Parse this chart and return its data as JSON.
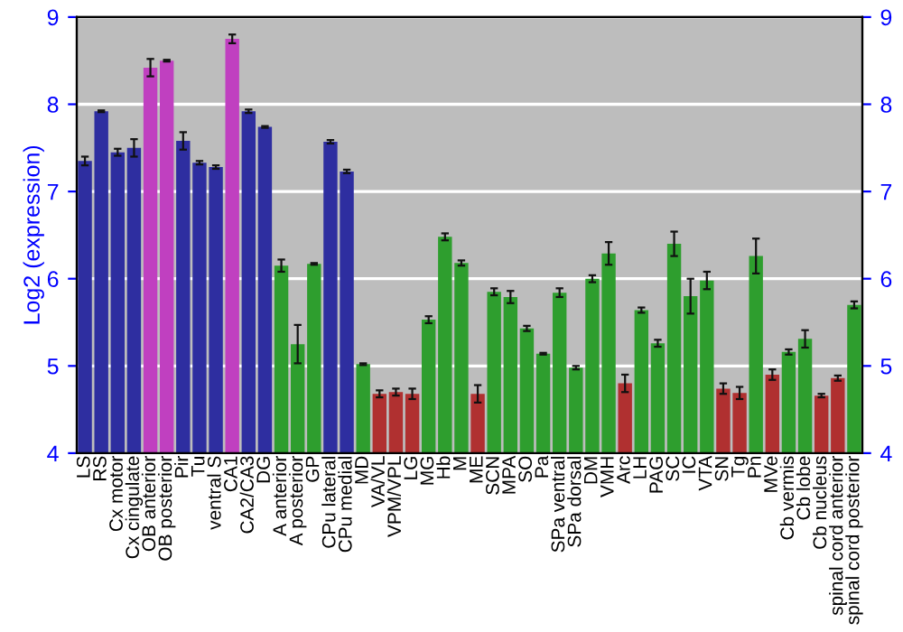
{
  "chart_data": {
    "type": "bar",
    "ylabel": "Log2 (expression)",
    "categories": [
      "LS",
      "RS",
      "Cx motor",
      "Cx cingulate",
      "OB anterior",
      "OB posterior",
      "Pir",
      "Tu",
      "ventral S",
      "CA1",
      "CA2/CA3",
      "DG",
      "A anterior",
      "A posterior",
      "GP",
      "CPu lateral",
      "CPu medial",
      "MD",
      "VA/VL",
      "VPM/VPL",
      "LG",
      "MG",
      "Hb",
      "M",
      "ME",
      "SCN",
      "MPA",
      "SO",
      "Pa",
      "SPa ventral",
      "SPa dorsal",
      "DM",
      "VMH",
      "Arc",
      "LH",
      "PAG",
      "SC",
      "IC",
      "VTA",
      "SN",
      "Tg",
      "Pn",
      "MVe",
      "Cb vermis",
      "Cb lobe",
      "Cb nucleus",
      "spinal cord anterior",
      "spinal cord posterior"
    ],
    "values": [
      7.35,
      7.92,
      7.45,
      7.5,
      8.42,
      8.5,
      7.58,
      7.33,
      7.28,
      8.75,
      7.92,
      7.74,
      6.15,
      5.25,
      6.17,
      7.57,
      7.23,
      5.02,
      4.68,
      4.7,
      4.68,
      5.53,
      6.48,
      6.18,
      4.68,
      5.85,
      5.79,
      5.43,
      5.14,
      5.84,
      4.98,
      6.0,
      6.29,
      4.8,
      5.64,
      5.26,
      6.4,
      5.8,
      5.98,
      4.74,
      4.69,
      6.26,
      4.9,
      5.16,
      5.31,
      4.66,
      4.86,
      5.7
    ],
    "errors": [
      0.05,
      0.01,
      0.04,
      0.1,
      0.1,
      0.01,
      0.1,
      0.02,
      0.02,
      0.05,
      0.02,
      0.01,
      0.07,
      0.22,
      0.01,
      0.02,
      0.02,
      0.01,
      0.04,
      0.04,
      0.06,
      0.04,
      0.04,
      0.03,
      0.1,
      0.04,
      0.07,
      0.03,
      0.01,
      0.05,
      0.02,
      0.04,
      0.13,
      0.1,
      0.03,
      0.04,
      0.14,
      0.2,
      0.1,
      0.06,
      0.07,
      0.2,
      0.06,
      0.03,
      0.1,
      0.02,
      0.03,
      0.04
    ],
    "colors": [
      "#2e2ea0",
      "#2e2ea0",
      "#2e2ea0",
      "#2e2ea0",
      "#c040c0",
      "#c040c0",
      "#2e2ea0",
      "#2e2ea0",
      "#2e2ea0",
      "#c040c0",
      "#2e2ea0",
      "#2e2ea0",
      "#2e9e2e",
      "#2e9e2e",
      "#2e9e2e",
      "#2e2ea0",
      "#2e2ea0",
      "#2e9e2e",
      "#b03030",
      "#b03030",
      "#b03030",
      "#2e9e2e",
      "#2e9e2e",
      "#2e9e2e",
      "#b03030",
      "#2e9e2e",
      "#2e9e2e",
      "#2e9e2e",
      "#2e9e2e",
      "#2e9e2e",
      "#2e9e2e",
      "#2e9e2e",
      "#2e9e2e",
      "#b03030",
      "#2e9e2e",
      "#2e9e2e",
      "#2e9e2e",
      "#2e9e2e",
      "#2e9e2e",
      "#b03030",
      "#b03030",
      "#2e9e2e",
      "#b03030",
      "#2e9e2e",
      "#2e9e2e",
      "#b03030",
      "#b03030",
      "#2e9e2e"
    ],
    "ylim": [
      4,
      9
    ],
    "yticks": [
      4,
      5,
      6,
      7,
      8,
      9
    ],
    "y2lim": [
      4,
      9
    ],
    "y2ticks": [
      4,
      5,
      6,
      7,
      8,
      9
    ],
    "grid": "y"
  }
}
